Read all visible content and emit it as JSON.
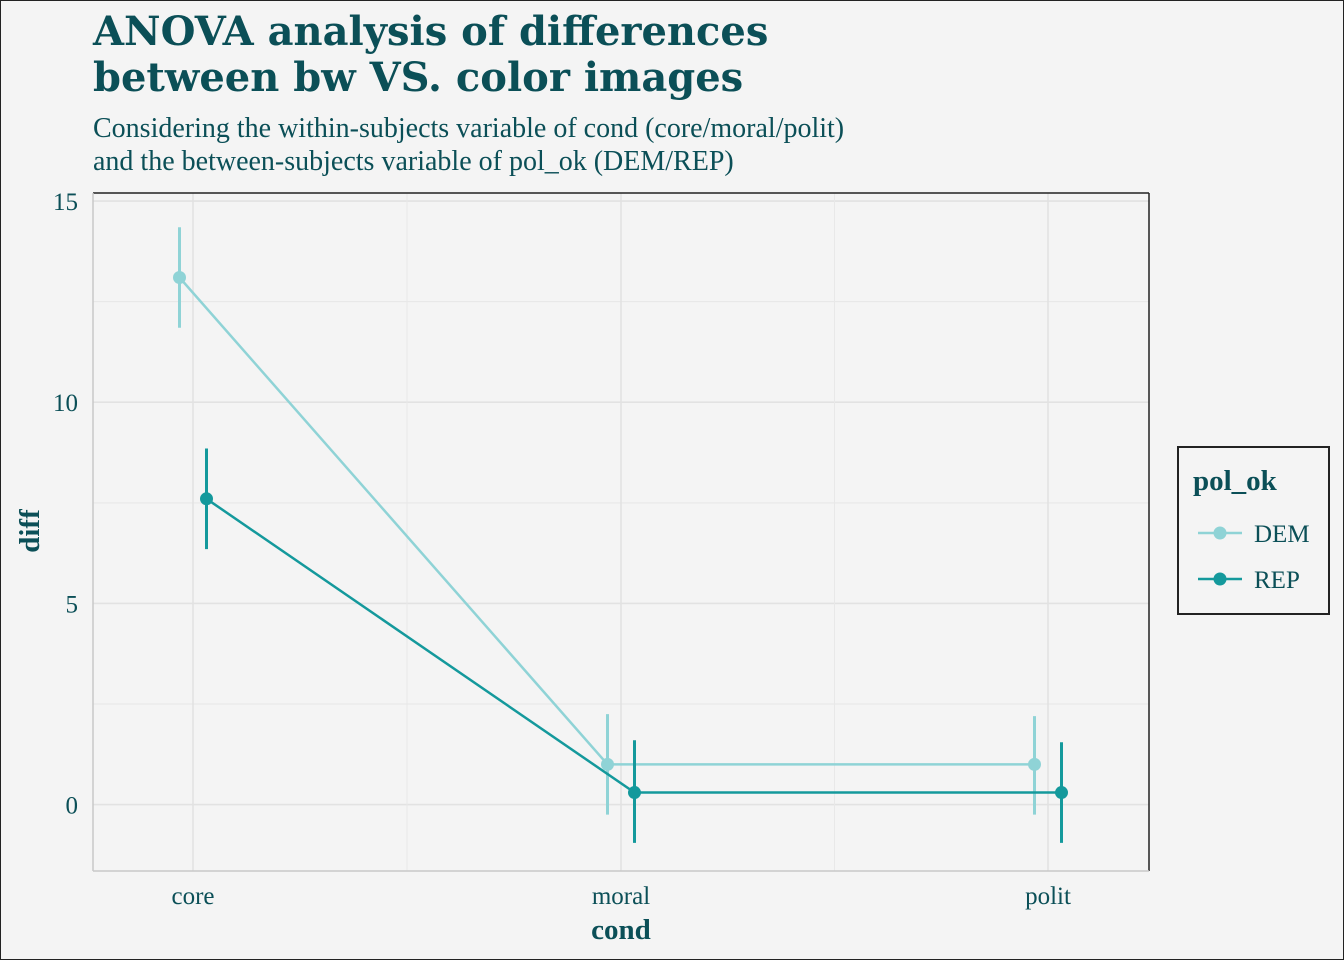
{
  "title": {
    "line1": "ANOVA analysis of differences",
    "line2": "between bw VS. color images"
  },
  "subtitle": {
    "line1": "Considering the within-subjects variable of cond (core/moral/polit)",
    "line2": "and the between-subjects variable of pol_ok (DEM/REP)"
  },
  "chart_data": {
    "type": "line",
    "xlabel": "cond",
    "ylabel": "diff",
    "categories": [
      "core",
      "moral",
      "polit"
    ],
    "ylim": [
      -1.65,
      15.2
    ],
    "yticks": [
      0,
      5,
      10,
      15
    ],
    "grid": true,
    "legend": {
      "title": "pol_ok",
      "placement": "right"
    },
    "series": [
      {
        "name": "DEM",
        "color": "#8fd3d6",
        "values": [
          13.1,
          1.0,
          1.0
        ],
        "lower": [
          11.85,
          -0.25,
          -0.25
        ],
        "upper": [
          14.35,
          2.25,
          2.2
        ]
      },
      {
        "name": "REP",
        "color": "#14999c",
        "values": [
          7.6,
          0.3,
          0.3
        ],
        "lower": [
          6.35,
          -0.95,
          -0.95
        ],
        "upper": [
          8.85,
          1.6,
          1.55
        ]
      }
    ]
  }
}
